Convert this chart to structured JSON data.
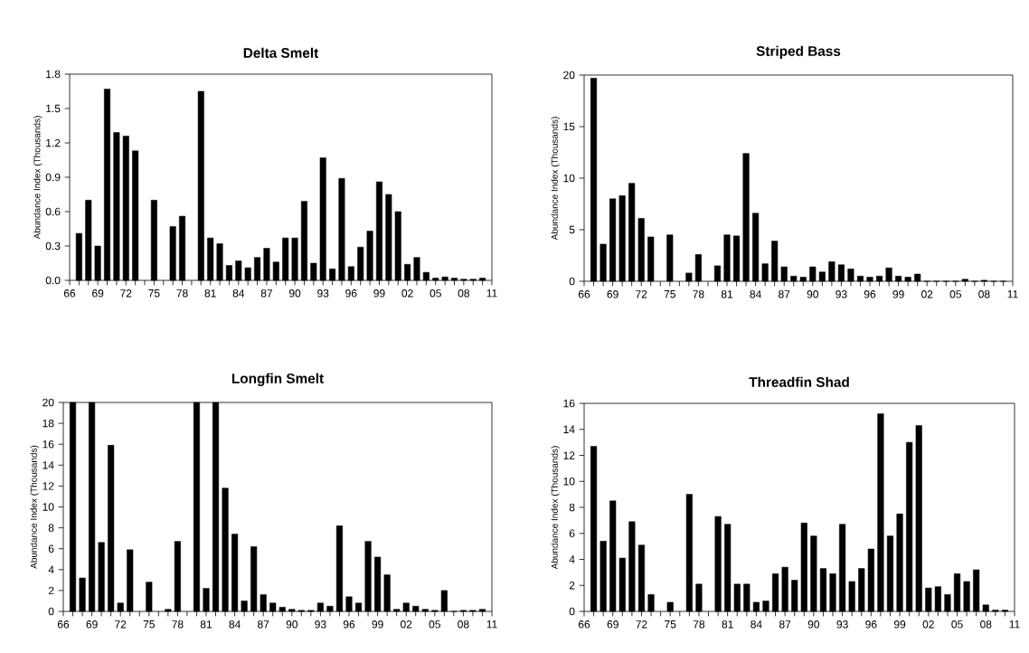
{
  "chart_data": [
    {
      "type": "bar",
      "title": "Delta Smelt",
      "ylabel": "Abundance Index   (Thousands)",
      "color": "#000000",
      "x": [
        1967,
        1968,
        1969,
        1970,
        1971,
        1972,
        1973,
        1974,
        1975,
        1976,
        1977,
        1978,
        1979,
        1980,
        1981,
        1982,
        1983,
        1984,
        1985,
        1986,
        1987,
        1988,
        1989,
        1990,
        1991,
        1992,
        1993,
        1994,
        1995,
        1996,
        1997,
        1998,
        1999,
        2000,
        2001,
        2002,
        2003,
        2004,
        2005,
        2006,
        2007,
        2008,
        2009,
        2010
      ],
      "values": [
        0.41,
        0.7,
        0.3,
        1.67,
        1.29,
        1.26,
        1.13,
        null,
        0.7,
        null,
        0.47,
        0.56,
        null,
        1.65,
        0.37,
        0.32,
        0.13,
        0.17,
        0.11,
        0.2,
        0.28,
        0.16,
        0.37,
        0.37,
        0.69,
        0.15,
        1.07,
        0.1,
        0.89,
        0.12,
        0.29,
        0.43,
        0.86,
        0.75,
        0.6,
        0.14,
        0.2,
        0.07,
        0.02,
        0.03,
        0.02,
        0.01,
        0.01,
        0.02
      ],
      "xlim": [
        1966,
        2011
      ],
      "xticks": [
        {
          "value": 1966,
          "label": "66"
        },
        {
          "value": 1967,
          "label": null
        },
        {
          "value": 1968,
          "label": null
        },
        {
          "value": 1969,
          "label": "69"
        },
        {
          "value": 1970,
          "label": null
        },
        {
          "value": 1971,
          "label": null
        },
        {
          "value": 1972,
          "label": "72"
        },
        {
          "value": 1973,
          "label": null
        },
        {
          "value": 1974,
          "label": null
        },
        {
          "value": 1975,
          "label": "75"
        },
        {
          "value": 1976,
          "label": null
        },
        {
          "value": 1977,
          "label": null
        },
        {
          "value": 1978,
          "label": "78"
        },
        {
          "value": 1979,
          "label": null
        },
        {
          "value": 1980,
          "label": null
        },
        {
          "value": 1981,
          "label": "81"
        },
        {
          "value": 1982,
          "label": null
        },
        {
          "value": 1983,
          "label": null
        },
        {
          "value": 1984,
          "label": "84"
        },
        {
          "value": 1985,
          "label": null
        },
        {
          "value": 1986,
          "label": null
        },
        {
          "value": 1987,
          "label": "87"
        },
        {
          "value": 1988,
          "label": null
        },
        {
          "value": 1989,
          "label": null
        },
        {
          "value": 1990,
          "label": "90"
        },
        {
          "value": 1991,
          "label": null
        },
        {
          "value": 1992,
          "label": null
        },
        {
          "value": 1993,
          "label": "93"
        },
        {
          "value": 1994,
          "label": null
        },
        {
          "value": 1995,
          "label": null
        },
        {
          "value": 1996,
          "label": "96"
        },
        {
          "value": 1997,
          "label": null
        },
        {
          "value": 1998,
          "label": null
        },
        {
          "value": 1999,
          "label": "99"
        },
        {
          "value": 2000,
          "label": null
        },
        {
          "value": 2001,
          "label": null
        },
        {
          "value": 2002,
          "label": "02"
        },
        {
          "value": 2003,
          "label": null
        },
        {
          "value": 2004,
          "label": null
        },
        {
          "value": 2005,
          "label": "05"
        },
        {
          "value": 2006,
          "label": null
        },
        {
          "value": 2007,
          "label": null
        },
        {
          "value": 2008,
          "label": "08"
        },
        {
          "value": 2009,
          "label": null
        },
        {
          "value": 2010,
          "label": null
        },
        {
          "value": 2011,
          "label": "11"
        }
      ],
      "ylim": [
        0,
        1.8
      ],
      "yticks": [
        {
          "value": 0,
          "label": "0.0"
        },
        {
          "value": 0.3,
          "label": "0.3"
        },
        {
          "value": 0.6,
          "label": "0.6"
        },
        {
          "value": 0.9,
          "label": "0.9"
        },
        1.2,
        1.5,
        1.8
      ]
    },
    {
      "type": "bar",
      "title": "Striped Bass",
      "ylabel": "Abundance Index   (Thousands)",
      "color": "#000000",
      "x": [
        1967,
        1968,
        1969,
        1970,
        1971,
        1972,
        1973,
        1974,
        1975,
        1976,
        1977,
        1978,
        1979,
        1980,
        1981,
        1982,
        1983,
        1984,
        1985,
        1986,
        1987,
        1988,
        1989,
        1990,
        1991,
        1992,
        1993,
        1994,
        1995,
        1996,
        1997,
        1998,
        1999,
        2000,
        2001,
        2002,
        2003,
        2004,
        2005,
        2006,
        2007,
        2008,
        2009,
        2010
      ],
      "values": [
        19.7,
        3.6,
        8.0,
        8.3,
        9.5,
        6.1,
        4.3,
        null,
        4.5,
        null,
        0.8,
        2.6,
        null,
        1.5,
        4.5,
        4.4,
        12.4,
        6.6,
        1.7,
        3.9,
        1.4,
        0.5,
        0.4,
        1.4,
        0.9,
        1.9,
        1.6,
        1.2,
        0.5,
        0.4,
        0.5,
        1.3,
        0.5,
        0.4,
        0.7,
        0,
        0,
        0,
        0,
        0.2,
        0,
        0.1,
        0,
        0
      ],
      "xlim": [
        1966,
        2011
      ],
      "xticks": [
        {
          "value": 1966,
          "label": "66"
        },
        {
          "value": 1967,
          "label": null
        },
        {
          "value": 1968,
          "label": null
        },
        {
          "value": 1969,
          "label": "69"
        },
        {
          "value": 1970,
          "label": null
        },
        {
          "value": 1971,
          "label": null
        },
        {
          "value": 1972,
          "label": "72"
        },
        {
          "value": 1973,
          "label": null
        },
        {
          "value": 1974,
          "label": null
        },
        {
          "value": 1975,
          "label": "75"
        },
        {
          "value": 1976,
          "label": null
        },
        {
          "value": 1977,
          "label": null
        },
        {
          "value": 1978,
          "label": "78"
        },
        {
          "value": 1979,
          "label": null
        },
        {
          "value": 1980,
          "label": null
        },
        {
          "value": 1981,
          "label": "81"
        },
        {
          "value": 1982,
          "label": null
        },
        {
          "value": 1983,
          "label": null
        },
        {
          "value": 1984,
          "label": "84"
        },
        {
          "value": 1985,
          "label": null
        },
        {
          "value": 1986,
          "label": null
        },
        {
          "value": 1987,
          "label": "87"
        },
        {
          "value": 1988,
          "label": null
        },
        {
          "value": 1989,
          "label": null
        },
        {
          "value": 1990,
          "label": "90"
        },
        {
          "value": 1991,
          "label": null
        },
        {
          "value": 1992,
          "label": null
        },
        {
          "value": 1993,
          "label": "93"
        },
        {
          "value": 1994,
          "label": null
        },
        {
          "value": 1995,
          "label": null
        },
        {
          "value": 1996,
          "label": "96"
        },
        {
          "value": 1997,
          "label": null
        },
        {
          "value": 1998,
          "label": null
        },
        {
          "value": 1999,
          "label": "99"
        },
        {
          "value": 2000,
          "label": null
        },
        {
          "value": 2001,
          "label": null
        },
        {
          "value": 2002,
          "label": "02"
        },
        {
          "value": 2003,
          "label": null
        },
        {
          "value": 2004,
          "label": null
        },
        {
          "value": 2005,
          "label": "05"
        },
        {
          "value": 2006,
          "label": null
        },
        {
          "value": 2007,
          "label": null
        },
        {
          "value": 2008,
          "label": "08"
        },
        {
          "value": 2009,
          "label": null
        },
        {
          "value": 2010,
          "label": null
        },
        {
          "value": 2011,
          "label": "11"
        }
      ],
      "ylim": [
        0,
        20
      ],
      "yticks": [
        0,
        5,
        10,
        15,
        20
      ]
    },
    {
      "type": "bar",
      "title": "Longfin Smelt",
      "ylabel": "Abundance Index   (Thousands)",
      "color": "#000000",
      "x": [
        1967,
        1968,
        1969,
        1970,
        1971,
        1972,
        1973,
        1974,
        1975,
        1976,
        1977,
        1978,
        1979,
        1980,
        1981,
        1982,
        1983,
        1984,
        1985,
        1986,
        1987,
        1988,
        1989,
        1990,
        1991,
        1992,
        1993,
        1994,
        1995,
        1996,
        1997,
        1998,
        1999,
        2000,
        2001,
        2002,
        2003,
        2004,
        2005,
        2006,
        2007,
        2008,
        2009,
        2010
      ],
      "values": [
        20,
        3.2,
        20,
        6.6,
        15.9,
        0.8,
        5.9,
        null,
        2.8,
        null,
        0.2,
        6.7,
        null,
        20,
        2.2,
        20,
        11.8,
        7.4,
        1.0,
        6.2,
        1.6,
        0.8,
        0.4,
        0.2,
        0.1,
        0.1,
        0.8,
        0.5,
        8.2,
        1.4,
        0.8,
        6.7,
        5.2,
        3.5,
        0.2,
        0.8,
        0.5,
        0.2,
        0.1,
        2.0,
        0,
        0.1,
        0.1,
        0.2
      ],
      "xlim": [
        1966,
        2011
      ],
      "xticks": [
        {
          "value": 1966,
          "label": "66"
        },
        {
          "value": 1967,
          "label": null
        },
        {
          "value": 1968,
          "label": null
        },
        {
          "value": 1969,
          "label": "69"
        },
        {
          "value": 1970,
          "label": null
        },
        {
          "value": 1971,
          "label": null
        },
        {
          "value": 1972,
          "label": "72"
        },
        {
          "value": 1973,
          "label": null
        },
        {
          "value": 1974,
          "label": null
        },
        {
          "value": 1975,
          "label": "75"
        },
        {
          "value": 1976,
          "label": null
        },
        {
          "value": 1977,
          "label": null
        },
        {
          "value": 1978,
          "label": "78"
        },
        {
          "value": 1979,
          "label": null
        },
        {
          "value": 1980,
          "label": null
        },
        {
          "value": 1981,
          "label": "81"
        },
        {
          "value": 1982,
          "label": null
        },
        {
          "value": 1983,
          "label": null
        },
        {
          "value": 1984,
          "label": "84"
        },
        {
          "value": 1985,
          "label": null
        },
        {
          "value": 1986,
          "label": null
        },
        {
          "value": 1987,
          "label": "87"
        },
        {
          "value": 1988,
          "label": null
        },
        {
          "value": 1989,
          "label": null
        },
        {
          "value": 1990,
          "label": "90"
        },
        {
          "value": 1991,
          "label": null
        },
        {
          "value": 1992,
          "label": null
        },
        {
          "value": 1993,
          "label": "93"
        },
        {
          "value": 1994,
          "label": null
        },
        {
          "value": 1995,
          "label": null
        },
        {
          "value": 1996,
          "label": "96"
        },
        {
          "value": 1997,
          "label": null
        },
        {
          "value": 1998,
          "label": null
        },
        {
          "value": 1999,
          "label": "99"
        },
        {
          "value": 2000,
          "label": null
        },
        {
          "value": 2001,
          "label": null
        },
        {
          "value": 2002,
          "label": "02"
        },
        {
          "value": 2003,
          "label": null
        },
        {
          "value": 2004,
          "label": null
        },
        {
          "value": 2005,
          "label": "05"
        },
        {
          "value": 2006,
          "label": null
        },
        {
          "value": 2007,
          "label": null
        },
        {
          "value": 2008,
          "label": "08"
        },
        {
          "value": 2009,
          "label": null
        },
        {
          "value": 2010,
          "label": null
        },
        {
          "value": 2011,
          "label": "11"
        }
      ],
      "ylim": [
        0,
        20
      ],
      "yticks": [
        0,
        2,
        4,
        6,
        8,
        10,
        12,
        14,
        16,
        18,
        20
      ]
    },
    {
      "type": "bar",
      "title": "Threadfin Shad",
      "ylabel": "Abundance Index   (Thousands)",
      "color": "#000000",
      "x": [
        1967,
        1968,
        1969,
        1970,
        1971,
        1972,
        1973,
        1974,
        1975,
        1976,
        1977,
        1978,
        1979,
        1980,
        1981,
        1982,
        1983,
        1984,
        1985,
        1986,
        1987,
        1988,
        1989,
        1990,
        1991,
        1992,
        1993,
        1994,
        1995,
        1996,
        1997,
        1998,
        1999,
        2000,
        2001,
        2002,
        2003,
        2004,
        2005,
        2006,
        2007,
        2008,
        2009,
        2010
      ],
      "values": [
        12.7,
        5.4,
        8.5,
        4.1,
        6.9,
        5.1,
        1.3,
        null,
        0.7,
        null,
        9.0,
        2.1,
        null,
        7.3,
        6.7,
        2.1,
        2.1,
        0.7,
        0.8,
        2.9,
        3.4,
        2.4,
        6.8,
        5.8,
        3.3,
        2.9,
        6.7,
        2.3,
        3.3,
        4.8,
        15.2,
        5.8,
        7.5,
        13.0,
        14.3,
        1.8,
        1.9,
        1.3,
        2.9,
        2.3,
        3.2,
        0.5,
        0.1,
        0.1
      ],
      "xlim": [
        1966,
        2011
      ],
      "xticks": [
        {
          "value": 1966,
          "label": "66"
        },
        {
          "value": 1967,
          "label": null
        },
        {
          "value": 1968,
          "label": null
        },
        {
          "value": 1969,
          "label": "69"
        },
        {
          "value": 1970,
          "label": null
        },
        {
          "value": 1971,
          "label": null
        },
        {
          "value": 1972,
          "label": "72"
        },
        {
          "value": 1973,
          "label": null
        },
        {
          "value": 1974,
          "label": null
        },
        {
          "value": 1975,
          "label": "75"
        },
        {
          "value": 1976,
          "label": null
        },
        {
          "value": 1977,
          "label": null
        },
        {
          "value": 1978,
          "label": "78"
        },
        {
          "value": 1979,
          "label": null
        },
        {
          "value": 1980,
          "label": null
        },
        {
          "value": 1981,
          "label": "81"
        },
        {
          "value": 1982,
          "label": null
        },
        {
          "value": 1983,
          "label": null
        },
        {
          "value": 1984,
          "label": "84"
        },
        {
          "value": 1985,
          "label": null
        },
        {
          "value": 1986,
          "label": null
        },
        {
          "value": 1987,
          "label": "87"
        },
        {
          "value": 1988,
          "label": null
        },
        {
          "value": 1989,
          "label": null
        },
        {
          "value": 1990,
          "label": "90"
        },
        {
          "value": 1991,
          "label": null
        },
        {
          "value": 1992,
          "label": null
        },
        {
          "value": 1993,
          "label": "93"
        },
        {
          "value": 1994,
          "label": null
        },
        {
          "value": 1995,
          "label": null
        },
        {
          "value": 1996,
          "label": "96"
        },
        {
          "value": 1997,
          "label": null
        },
        {
          "value": 1998,
          "label": null
        },
        {
          "value": 1999,
          "label": "99"
        },
        {
          "value": 2000,
          "label": null
        },
        {
          "value": 2001,
          "label": null
        },
        {
          "value": 2002,
          "label": "02"
        },
        {
          "value": 2003,
          "label": null
        },
        {
          "value": 2004,
          "label": null
        },
        {
          "value": 2005,
          "label": "05"
        },
        {
          "value": 2006,
          "label": null
        },
        {
          "value": 2007,
          "label": null
        },
        {
          "value": 2008,
          "label": "08"
        },
        {
          "value": 2009,
          "label": null
        },
        {
          "value": 2010,
          "label": null
        },
        {
          "value": 2011,
          "label": "11"
        }
      ],
      "ylim": [
        0,
        16
      ],
      "yticks": [
        0,
        2,
        4,
        6,
        8,
        10,
        12,
        14,
        16
      ]
    }
  ]
}
